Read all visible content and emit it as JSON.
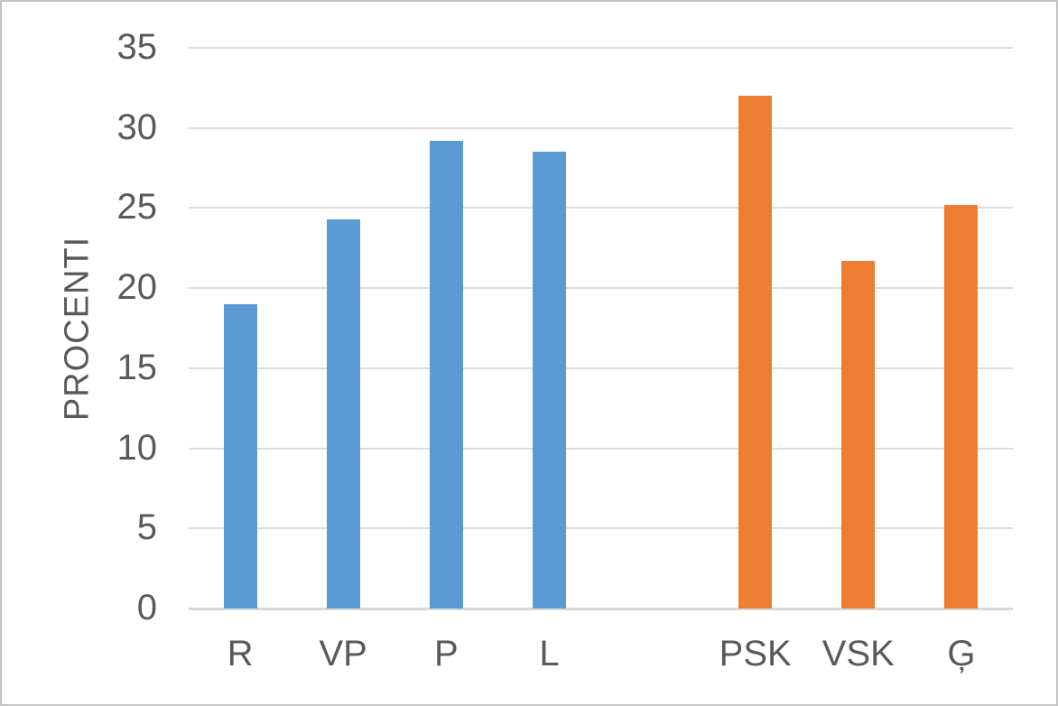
{
  "chart_data": {
    "type": "bar",
    "title": "",
    "xlabel": "",
    "ylabel": "PROCENTI",
    "ylim": [
      0,
      35
    ],
    "ytick_interval": 5,
    "yticks": [
      0,
      5,
      10,
      15,
      20,
      25,
      30,
      35
    ],
    "grid": true,
    "legend": false,
    "categories": [
      "R",
      "VP",
      "P",
      "L",
      "",
      "PSK",
      "VSK",
      "Ģ"
    ],
    "values": [
      19,
      24.3,
      29.2,
      28.5,
      null,
      32,
      21.7,
      25.2
    ],
    "bar_colors": [
      "#5B9BD5",
      "#5B9BD5",
      "#5B9BD5",
      "#5B9BD5",
      null,
      "#ED7D31",
      "#ED7D31",
      "#ED7D31"
    ],
    "series_colors": {
      "blue_group": "#5B9BD5",
      "orange_group": "#ED7D31"
    }
  },
  "style": {
    "text_color": "#595959",
    "gridline_color": "#DCDCDC",
    "axis_line_color": "#D9D9D9",
    "background": "#FFFFFF",
    "border_color": "#C4C4C4"
  }
}
